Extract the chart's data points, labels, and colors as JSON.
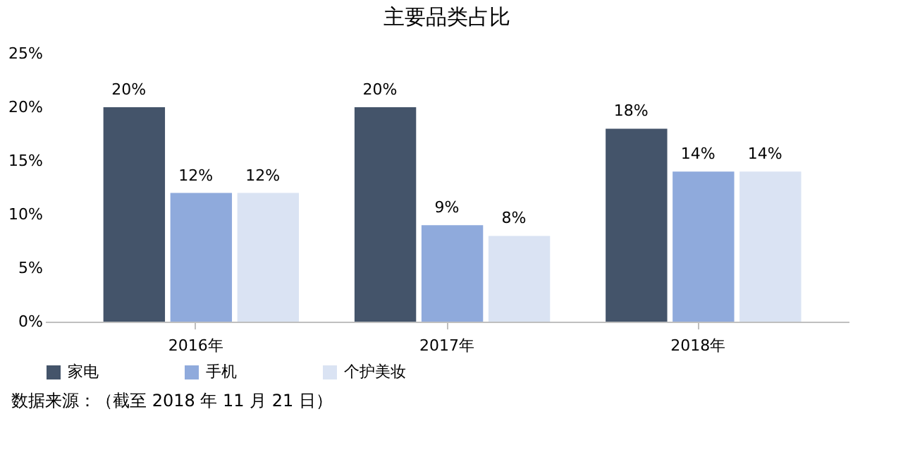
{
  "chart_data": {
    "type": "bar",
    "title": "主要品类占比",
    "categories": [
      "2016年",
      "2017年",
      "2018年"
    ],
    "series": [
      {
        "name": "家电",
        "color": "#44546a",
        "values": [
          20,
          20,
          18
        ],
        "value_labels": [
          "20%",
          "20%",
          "18%"
        ]
      },
      {
        "name": "手机",
        "color": "#8faadc",
        "values": [
          12,
          9,
          14
        ],
        "value_labels": [
          "12%",
          "9%",
          "14%"
        ]
      },
      {
        "name": "个护美妆",
        "color": "#dae3f3",
        "values": [
          12,
          8,
          14
        ],
        "value_labels": [
          "12%",
          "8%",
          "14%"
        ]
      }
    ],
    "ylim": [
      0,
      25
    ],
    "yticks": [
      {
        "value": 0,
        "label": "0%"
      },
      {
        "value": 5,
        "label": "5%"
      },
      {
        "value": 10,
        "label": "10%"
      },
      {
        "value": 15,
        "label": "15%"
      },
      {
        "value": 20,
        "label": "20%"
      },
      {
        "value": 25,
        "label": "25%"
      }
    ],
    "legend": "bottom",
    "annotations": [
      "数据来源：（截至 2018 年 11 月 21 日）"
    ]
  }
}
